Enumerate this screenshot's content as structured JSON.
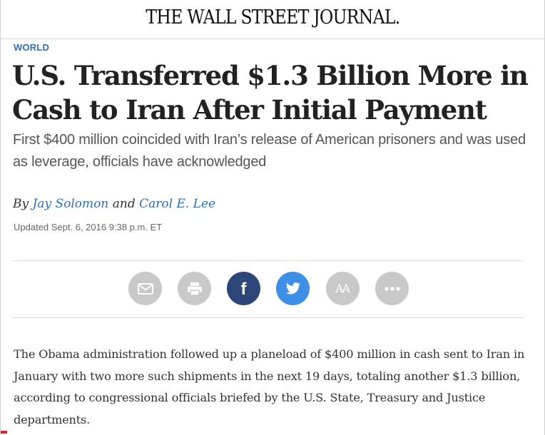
{
  "masthead": {
    "title": "THE WALL STREET JOURNAL."
  },
  "article": {
    "section": "WORLD",
    "headline": "U.S. Transferred $1.3 Billion More in Cash to Iran After Initial Payment",
    "dek": "First $400 million coincided with Iran’s release of American prisoners and was used as leverage, officials have acknowledged",
    "byline": {
      "prefix": "By",
      "author_1": "Jay Solomon",
      "conjunction": "and",
      "author_2": "Carol E. Lee"
    },
    "updated": "Updated Sept. 6, 2016 9:38 p.m. ET",
    "body_paragraph": "The Obama administration followed up a planeload of $400 million in cash sent to Iran in January with two more such shipments in the next 19 days, totaling another $1.3 billion, according to congressional officials briefed by the U.S. State, Treasury and Justice departments."
  },
  "share_bar": {
    "buttons": [
      {
        "icon": "email-icon",
        "color": "#c9c9c9"
      },
      {
        "icon": "print-icon",
        "color": "#c9c9c9"
      },
      {
        "icon": "facebook-icon",
        "glyph": "f",
        "color": "#2d4679"
      },
      {
        "icon": "twitter-icon",
        "color": "#3d8fe8"
      },
      {
        "icon": "text-size-icon",
        "glyph": "AA",
        "color": "#c9c9c9"
      },
      {
        "icon": "more-icon",
        "color": "#c9c9c9"
      }
    ]
  },
  "colors": {
    "accent_link": "#2f6fb3",
    "headline": "#222222",
    "dek": "#555555",
    "body": "#333333"
  }
}
